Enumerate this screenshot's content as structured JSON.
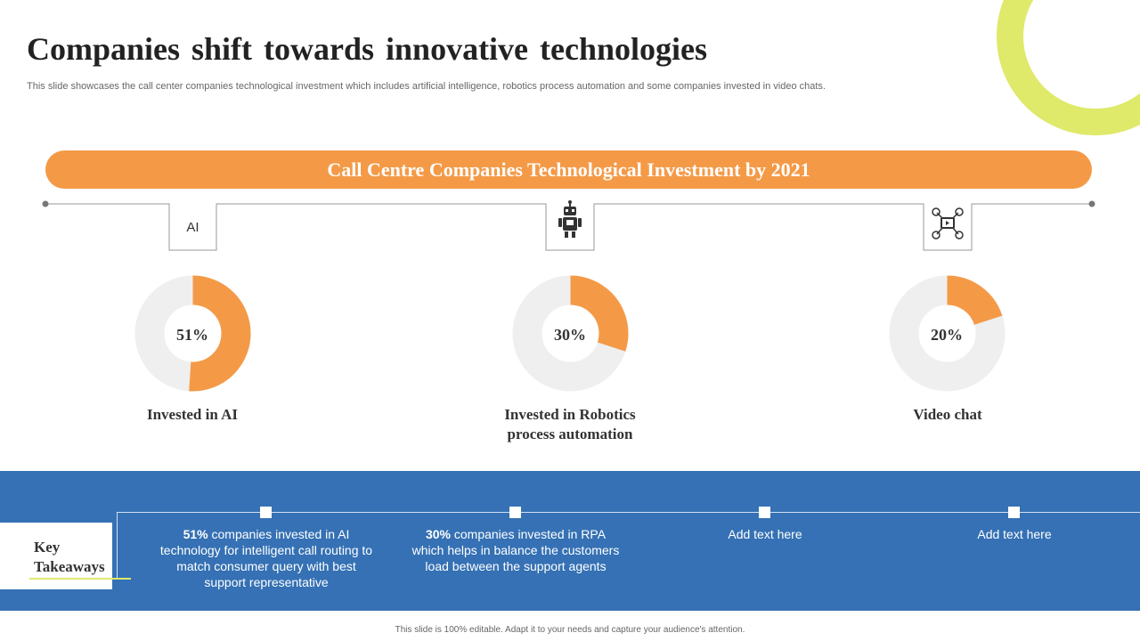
{
  "slide": {
    "title": "Companies shift towards innovative technologies",
    "subtitle": "This slide showcases the call center companies technological investment which includes artificial intelligence, robotics process automation and some companies invested in video chats.",
    "banner": "Call Centre Companies Technological Investment by 2021",
    "footer": "This slide is 100% editable. Adapt it to your needs and capture your audience's attention."
  },
  "colors": {
    "accent_orange": "#f49a47",
    "donut_track": "#efefef",
    "band_blue": "#3571b4",
    "ring_yellow": "#dfe96a"
  },
  "icons": {
    "first": "AI",
    "second": "robot-icon",
    "third": "video-chat-icon"
  },
  "chart_data": [
    {
      "type": "pie",
      "variant": "donut",
      "label": "Invested in AI",
      "values": [
        51,
        49
      ],
      "display": "51%"
    },
    {
      "type": "pie",
      "variant": "donut",
      "label": "Invested in Robotics process automation",
      "values": [
        30,
        70
      ],
      "display": "30%"
    },
    {
      "type": "pie",
      "variant": "donut",
      "label": "Video chat",
      "values": [
        20,
        80
      ],
      "display": "20%"
    }
  ],
  "labels": {
    "rpa_line1": "Invested in Robotics",
    "rpa_line2": "process automation"
  },
  "takeaways": {
    "heading_line1": "Key",
    "heading_line2": "Takeaways",
    "items": [
      {
        "bold": "51%",
        "text": " companies invested in AI technology for intelligent call routing to match consumer query with best support representative"
      },
      {
        "bold": "30%",
        "text": " companies invested in RPA which helps in balance the customers load between the support agents"
      },
      {
        "bold": "",
        "text": "Add text here"
      },
      {
        "bold": "",
        "text": "Add text here"
      }
    ]
  }
}
